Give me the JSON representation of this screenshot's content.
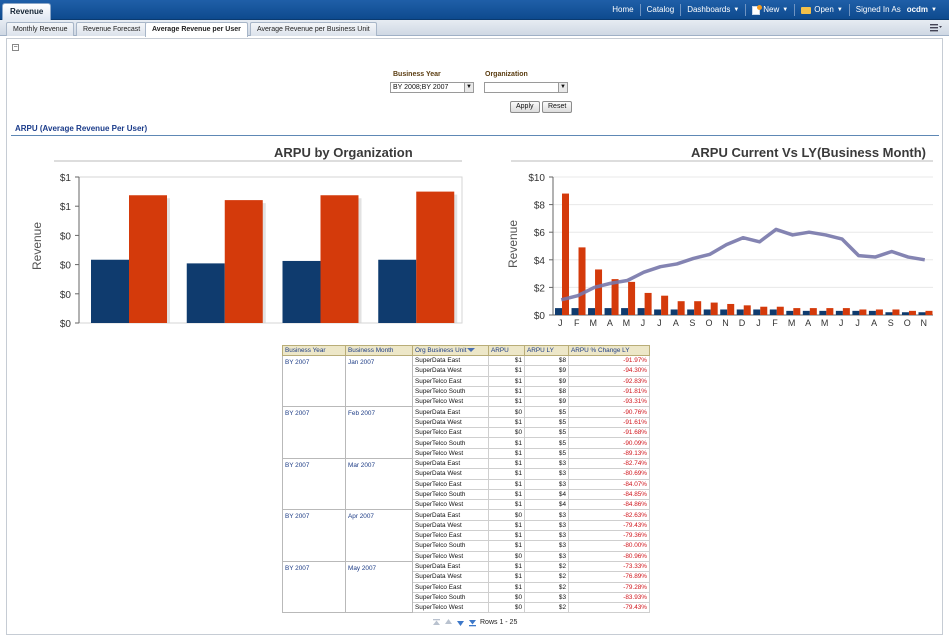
{
  "header": {
    "app_tab": "Revenue",
    "nav": {
      "home": "Home",
      "catalog": "Catalog",
      "dashboards": "Dashboards",
      "new": "New",
      "open": "Open",
      "signed_in_as": "Signed In As",
      "user": "ocdm"
    }
  },
  "tabs": [
    "Monthly Revenue",
    "Revenue Forecast",
    "Average Revenue per User",
    "Average Revenue per Business Unit"
  ],
  "prompts": {
    "business_year_label": "Business Year",
    "business_year_value": "BY 2008;BY 2007",
    "organization_label": "Organization",
    "organization_value": "",
    "apply_label": "Apply",
    "reset_label": "Reset"
  },
  "section_title": "ARPU (Average Revenue Per User)",
  "chart_data": [
    {
      "type": "bar",
      "title": "ARPU by Organization",
      "ylabel": "Revenue",
      "xlabel": "",
      "y_tick_labels": [
        "$0",
        "$0",
        "$0",
        "$0",
        "$1",
        "$1"
      ],
      "categories": [
        "",
        "",
        "",
        ""
      ],
      "series": [
        {
          "values": [
            0.52,
            0.49,
            0.51,
            0.52
          ],
          "color": "#0f3b6e"
        },
        {
          "values": [
            1.05,
            1.01,
            1.05,
            1.08
          ],
          "color": "#d43a0b"
        }
      ],
      "ylim": [
        0,
        1.2
      ]
    },
    {
      "type": "bar+line",
      "title": "ARPU Current Vs LY(Business Month)",
      "ylabel": "Revenue",
      "xlabel": "",
      "ylim": [
        0,
        10
      ],
      "y_tick_labels": [
        "$0",
        "$2",
        "$4",
        "$6",
        "$8",
        "$10"
      ],
      "categories": [
        "J",
        "F",
        "M",
        "A",
        "M",
        "J",
        "J",
        "A",
        "S",
        "O",
        "N",
        "D",
        "J",
        "F",
        "M",
        "A",
        "M",
        "J",
        "J",
        "A",
        "S",
        "O",
        "N"
      ],
      "series": [
        {
          "kind": "bar",
          "color": "#0f3b6e",
          "values": [
            0.5,
            0.5,
            0.5,
            0.5,
            0.5,
            0.5,
            0.4,
            0.4,
            0.4,
            0.4,
            0.4,
            0.4,
            0.4,
            0.4,
            0.3,
            0.3,
            0.3,
            0.3,
            0.3,
            0.3,
            0.2,
            0.2,
            0.2
          ]
        },
        {
          "kind": "bar",
          "color": "#d43a0b",
          "values": [
            8.8,
            4.9,
            3.3,
            2.6,
            2.4,
            1.6,
            1.4,
            1.0,
            1.0,
            0.9,
            0.8,
            0.7,
            0.6,
            0.6,
            0.5,
            0.5,
            0.5,
            0.5,
            0.4,
            0.4,
            0.4,
            0.3,
            0.3
          ]
        },
        {
          "kind": "line",
          "color": "#7777aa",
          "values": [
            1.1,
            1.4,
            2.0,
            2.3,
            2.5,
            3.1,
            3.5,
            3.7,
            4.1,
            4.4,
            5.1,
            5.6,
            5.3,
            6.2,
            5.8,
            6.0,
            5.8,
            5.5,
            4.3,
            4.2,
            4.6,
            4.2,
            4.0
          ]
        }
      ]
    }
  ],
  "table": {
    "headers": [
      "Business Year",
      "Business Month",
      "Org Business Unit",
      "ARPU",
      "ARPU LY",
      "ARPU % Change LY"
    ],
    "groups": [
      {
        "year": "BY 2007",
        "month": "Jan 2007",
        "rows": [
          [
            "SuperData East",
            "$1",
            "$8",
            "-91.97%"
          ],
          [
            "SuperData West",
            "$1",
            "$9",
            "-94.30%"
          ],
          [
            "SuperTelco East",
            "$1",
            "$9",
            "-92.83%"
          ],
          [
            "SuperTelco South",
            "$1",
            "$8",
            "-91.81%"
          ],
          [
            "SuperTelco West",
            "$1",
            "$9",
            "-93.31%"
          ]
        ]
      },
      {
        "year": "BY 2007",
        "month": "Feb 2007",
        "rows": [
          [
            "SuperData East",
            "$0",
            "$5",
            "-90.76%"
          ],
          [
            "SuperData West",
            "$1",
            "$5",
            "-91.61%"
          ],
          [
            "SuperTelco East",
            "$0",
            "$5",
            "-91.68%"
          ],
          [
            "SuperTelco South",
            "$1",
            "$5",
            "-90.09%"
          ],
          [
            "SuperTelco West",
            "$1",
            "$5",
            "-89.13%"
          ]
        ]
      },
      {
        "year": "BY 2007",
        "month": "Mar 2007",
        "rows": [
          [
            "SuperData East",
            "$1",
            "$3",
            "-82.74%"
          ],
          [
            "SuperData West",
            "$1",
            "$3",
            "-80.69%"
          ],
          [
            "SuperTelco East",
            "$1",
            "$3",
            "-84.07%"
          ],
          [
            "SuperTelco South",
            "$1",
            "$4",
            "-84.85%"
          ],
          [
            "SuperTelco West",
            "$1",
            "$4",
            "-84.86%"
          ]
        ]
      },
      {
        "year": "BY 2007",
        "month": "Apr 2007",
        "rows": [
          [
            "SuperData East",
            "$0",
            "$3",
            "-82.63%"
          ],
          [
            "SuperData West",
            "$1",
            "$3",
            "-79.43%"
          ],
          [
            "SuperTelco East",
            "$1",
            "$3",
            "-79.36%"
          ],
          [
            "SuperTelco South",
            "$1",
            "$3",
            "-80.00%"
          ],
          [
            "SuperTelco West",
            "$0",
            "$3",
            "-80.96%"
          ]
        ]
      },
      {
        "year": "BY 2007",
        "month": "May 2007",
        "rows": [
          [
            "SuperData East",
            "$1",
            "$2",
            "-73.33%"
          ],
          [
            "SuperData West",
            "$1",
            "$2",
            "-76.89%"
          ],
          [
            "SuperTelco East",
            "$1",
            "$2",
            "-79.28%"
          ],
          [
            "SuperTelco South",
            "$0",
            "$3",
            "-83.93%"
          ],
          [
            "SuperTelco West",
            "$0",
            "$2",
            "-79.43%"
          ]
        ]
      }
    ],
    "pager_text": "Rows 1 - 25"
  }
}
